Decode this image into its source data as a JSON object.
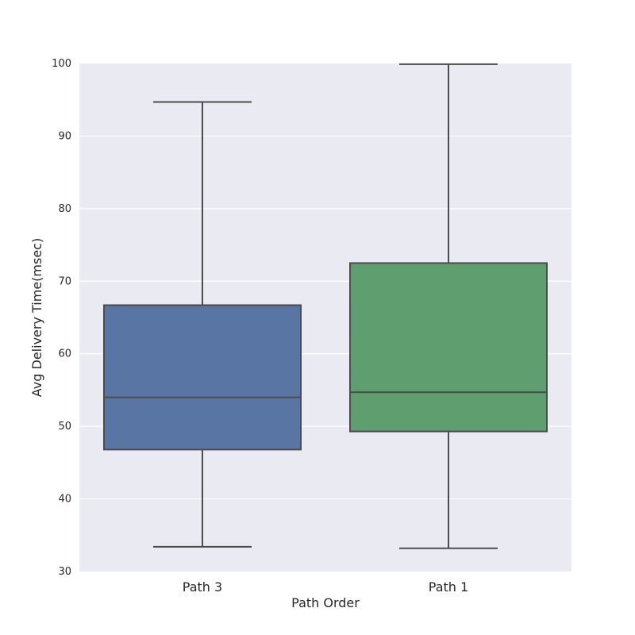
{
  "chart_data": {
    "type": "box",
    "xlabel": "Path Order",
    "ylabel": "Avg Delivery Time(msec)",
    "ylim": [
      30,
      100
    ],
    "yticks": [
      30,
      40,
      50,
      60,
      70,
      80,
      90,
      100
    ],
    "grid": true,
    "categories": [
      "Path 3",
      "Path 1"
    ],
    "boxes": [
      {
        "category": "Path 3",
        "min": 33.4,
        "q1": 46.8,
        "median": 54.0,
        "q3": 66.7,
        "max": 94.7,
        "color": "#5875a4"
      },
      {
        "category": "Path 1",
        "min": 33.2,
        "q1": 49.3,
        "median": 54.7,
        "q3": 72.5,
        "max": 99.9,
        "color": "#5f9e6e"
      }
    ]
  },
  "colors": {
    "plot_background": "#eaeaf2",
    "grid": "#ffffff",
    "line": "#4c4c4c"
  }
}
